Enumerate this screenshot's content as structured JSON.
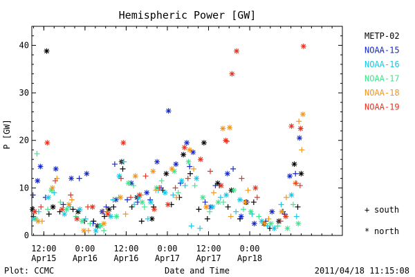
{
  "chart_data": {
    "type": "scatter",
    "title": "Hemispheric Power [GW]",
    "ylabel": "P [GW]",
    "xlabel": "Date and Time",
    "ylim": [
      0,
      44
    ],
    "xlim": [
      "2011-04-15 08:30",
      "2011-04-19 03:00"
    ],
    "y_ticks": [
      0,
      10,
      20,
      30,
      40
    ],
    "x_ticks": [
      {
        "t": "2011-04-15 12:00",
        "label1": "12:00",
        "label2": "Apr15"
      },
      {
        "t": "2011-04-16 00:00",
        "label1": "0:00",
        "label2": "Apr16"
      },
      {
        "t": "2011-04-16 12:00",
        "label1": "12:00",
        "label2": "Apr16"
      },
      {
        "t": "2011-04-17 00:00",
        "label1": "0:00",
        "label2": "Apr17"
      },
      {
        "t": "2011-04-17 12:00",
        "label1": "12:00",
        "label2": "Apr17"
      },
      {
        "t": "2011-04-18 00:00",
        "label1": "0:00",
        "label2": "Apr18"
      }
    ],
    "symbol_legend": [
      {
        "symbol": "+",
        "label": "south"
      },
      {
        "symbol": "*",
        "label": "north"
      }
    ],
    "series": [
      {
        "name": "METP-02",
        "color": "#000000",
        "north": [
          [
            "2011-04-15 08:40",
            5.5
          ],
          [
            "2011-04-15 12:50",
            38.8
          ],
          [
            "2011-04-15 14:40",
            6
          ],
          [
            "2011-04-15 22:00",
            5
          ],
          [
            "2011-04-16 03:40",
            2
          ],
          [
            "2011-04-16 07:00",
            5.5
          ],
          [
            "2011-04-16 10:40",
            15.5
          ],
          [
            "2011-04-16 15:10",
            8
          ],
          [
            "2011-04-16 19:30",
            3.5
          ],
          [
            "2011-04-16 23:40",
            13
          ],
          [
            "2011-04-17 04:40",
            17
          ],
          [
            "2011-04-17 10:40",
            19.5
          ],
          [
            "2011-04-17 14:40",
            11
          ],
          [
            "2011-04-17 18:40",
            9.5
          ],
          [
            "2011-04-17 23:00",
            7
          ],
          [
            "2011-04-18 04:10",
            2.5
          ],
          [
            "2011-04-18 08:30",
            3
          ],
          [
            "2011-04-18 13:00",
            15
          ],
          [
            "2011-04-18 15:00",
            13
          ]
        ],
        "south": [
          [
            "2011-04-15 09:00",
            4
          ],
          [
            "2011-04-15 13:30",
            4.5
          ],
          [
            "2011-04-15 16:40",
            5
          ],
          [
            "2011-04-15 20:30",
            5.5
          ],
          [
            "2011-04-15 23:50",
            3
          ],
          [
            "2011-04-16 02:30",
            3
          ],
          [
            "2011-04-16 05:40",
            4
          ],
          [
            "2011-04-16 08:20",
            6
          ],
          [
            "2011-04-16 11:00",
            14
          ],
          [
            "2011-04-16 13:40",
            6
          ],
          [
            "2011-04-16 16:30",
            3
          ],
          [
            "2011-04-16 20:00",
            6
          ],
          [
            "2011-04-16 22:40",
            9.5
          ],
          [
            "2011-04-17 01:10",
            6.5
          ],
          [
            "2011-04-17 03:30",
            8
          ],
          [
            "2011-04-17 06:40",
            13
          ],
          [
            "2011-04-17 09:10",
            5.5
          ],
          [
            "2011-04-17 11:40",
            3.5
          ],
          [
            "2011-04-17 15:10",
            10.5
          ],
          [
            "2011-04-17 17:40",
            6
          ],
          [
            "2011-04-17 21:10",
            3.5
          ],
          [
            "2011-04-18 01:10",
            7
          ],
          [
            "2011-04-18 05:50",
            1.5
          ],
          [
            "2011-04-18 09:40",
            5
          ],
          [
            "2011-04-18 14:00",
            6
          ]
        ]
      },
      {
        "name": "NOAA-15",
        "color": "#1428c8",
        "north": [
          [
            "2011-04-15 10:10",
            11.5
          ],
          [
            "2011-04-15 11:00",
            14.5
          ],
          [
            "2011-04-15 15:30",
            14
          ],
          [
            "2011-04-15 20:00",
            12
          ],
          [
            "2011-04-16 00:30",
            13
          ],
          [
            "2011-04-16 05:00",
            5
          ],
          [
            "2011-04-16 09:00",
            7.5
          ],
          [
            "2011-04-16 13:30",
            11
          ],
          [
            "2011-04-16 18:00",
            9
          ],
          [
            "2011-04-16 21:00",
            15.5
          ],
          [
            "2011-04-17 00:20",
            26.2
          ],
          [
            "2011-04-17 02:30",
            15
          ],
          [
            "2011-04-17 05:40",
            19.5
          ],
          [
            "2011-04-17 07:30",
            17.5
          ],
          [
            "2011-04-17 12:40",
            6
          ],
          [
            "2011-04-17 17:30",
            13
          ],
          [
            "2011-04-17 21:30",
            4
          ],
          [
            "2011-04-18 01:20",
            2.5
          ],
          [
            "2011-04-18 06:30",
            5
          ],
          [
            "2011-04-18 11:40",
            12.5
          ],
          [
            "2011-04-18 14:30",
            20.5
          ]
        ],
        "south": [
          [
            "2011-04-15 08:50",
            8.5
          ],
          [
            "2011-04-15 12:30",
            8
          ],
          [
            "2011-04-15 17:40",
            6.5
          ],
          [
            "2011-04-15 22:20",
            12
          ],
          [
            "2011-04-16 02:20",
            2.5
          ],
          [
            "2011-04-16 06:10",
            6
          ],
          [
            "2011-04-16 08:40",
            15
          ],
          [
            "2011-04-16 12:20",
            7.5
          ],
          [
            "2011-04-16 15:20",
            7
          ],
          [
            "2011-04-16 19:00",
            7.5
          ],
          [
            "2011-04-16 22:10",
            10
          ],
          [
            "2011-04-17 03:50",
            11
          ],
          [
            "2011-04-17 06:30",
            14.5
          ],
          [
            "2011-04-17 11:00",
            7
          ],
          [
            "2011-04-17 14:00",
            10.5
          ],
          [
            "2011-04-17 19:10",
            14
          ],
          [
            "2011-04-17 23:10",
            7
          ],
          [
            "2011-04-18 04:40",
            3
          ],
          [
            "2011-04-18 10:10",
            4.5
          ],
          [
            "2011-04-18 13:20",
            13
          ]
        ]
      },
      {
        "name": "NOAA-16",
        "color": "#16c8e6",
        "north": [
          [
            "2011-04-15 09:10",
            3.5
          ],
          [
            "2011-04-15 13:20",
            8
          ],
          [
            "2011-04-15 18:00",
            4.5
          ],
          [
            "2011-04-15 22:30",
            5.5
          ],
          [
            "2011-04-16 03:10",
            1
          ],
          [
            "2011-04-16 07:30",
            4
          ],
          [
            "2011-04-16 10:00",
            12.5
          ],
          [
            "2011-04-16 15:40",
            8
          ],
          [
            "2011-04-16 19:10",
            7
          ],
          [
            "2011-04-16 23:20",
            9
          ],
          [
            "2011-04-17 04:10",
            11.5
          ],
          [
            "2011-04-17 08:30",
            12
          ],
          [
            "2011-04-17 13:10",
            6
          ],
          [
            "2011-04-17 17:10",
            8.5
          ],
          [
            "2011-04-17 21:10",
            7.5
          ],
          [
            "2011-04-18 03:30",
            3
          ],
          [
            "2011-04-18 07:10",
            1.5
          ],
          [
            "2011-04-18 12:10",
            8.5
          ]
        ],
        "south": [
          [
            "2011-04-15 10:30",
            5
          ],
          [
            "2011-04-15 15:00",
            9
          ],
          [
            "2011-04-15 19:40",
            6
          ],
          [
            "2011-04-16 00:10",
            3.5
          ],
          [
            "2011-04-16 04:20",
            2
          ],
          [
            "2011-04-16 08:10",
            7.5
          ],
          [
            "2011-04-16 11:20",
            15.5
          ],
          [
            "2011-04-16 14:20",
            6.5
          ],
          [
            "2011-04-16 18:20",
            3.5
          ],
          [
            "2011-04-16 21:20",
            9.5
          ],
          [
            "2011-04-17 01:40",
            8.5
          ],
          [
            "2011-04-17 05:10",
            10.5
          ],
          [
            "2011-04-17 07:00",
            2
          ],
          [
            "2011-04-17 09:30",
            1.5
          ],
          [
            "2011-04-17 15:30",
            8
          ],
          [
            "2011-04-17 20:00",
            5
          ],
          [
            "2011-04-18 00:40",
            4.5
          ],
          [
            "2011-04-18 05:10",
            2
          ],
          [
            "2011-04-18 09:10",
            6.5
          ],
          [
            "2011-04-18 13:40",
            4
          ]
        ]
      },
      {
        "name": "NOAA-17",
        "color": "#3ce68c",
        "north": [
          [
            "2011-04-15 09:40",
            3.5
          ],
          [
            "2011-04-15 14:10",
            9.5
          ],
          [
            "2011-04-15 18:40",
            5.5
          ],
          [
            "2011-04-15 23:10",
            3
          ],
          [
            "2011-04-16 04:30",
            2
          ],
          [
            "2011-04-16 09:10",
            4
          ],
          [
            "2011-04-16 12:40",
            11
          ],
          [
            "2011-04-16 16:40",
            7
          ],
          [
            "2011-04-16 20:50",
            10
          ],
          [
            "2011-04-17 02:00",
            13.5
          ],
          [
            "2011-04-17 06:10",
            15.5
          ],
          [
            "2011-04-17 10:20",
            8
          ],
          [
            "2011-04-17 14:50",
            7
          ],
          [
            "2011-04-17 19:20",
            9.5
          ],
          [
            "2011-04-18 00:20",
            5
          ],
          [
            "2011-04-18 06:10",
            2.5
          ],
          [
            "2011-04-18 11:00",
            1.5
          ],
          [
            "2011-04-18 14:10",
            2.5
          ]
        ],
        "south": [
          [
            "2011-04-15 10:00",
            17.2
          ],
          [
            "2011-04-15 13:10",
            5.5
          ],
          [
            "2011-04-15 16:50",
            7
          ],
          [
            "2011-04-15 21:20",
            4
          ],
          [
            "2011-04-16 01:30",
            2.5
          ],
          [
            "2011-04-16 05:30",
            1
          ],
          [
            "2011-04-16 09:50",
            8
          ],
          [
            "2011-04-16 14:10",
            10.5
          ],
          [
            "2011-04-16 17:20",
            6
          ],
          [
            "2011-04-16 22:20",
            11.5
          ],
          [
            "2011-04-17 03:10",
            9
          ],
          [
            "2011-04-17 08:00",
            10.5
          ],
          [
            "2011-04-17 12:20",
            5
          ],
          [
            "2011-04-17 16:20",
            7
          ],
          [
            "2011-04-17 22:10",
            5.5
          ],
          [
            "2011-04-18 02:40",
            4
          ],
          [
            "2011-04-18 08:10",
            2
          ],
          [
            "2011-04-18 12:40",
            6.5
          ]
        ]
      },
      {
        "name": "NOAA-18",
        "color": "#f0961e",
        "north": [
          [
            "2011-04-15 10:20",
            3
          ],
          [
            "2011-04-15 14:30",
            10
          ],
          [
            "2011-04-15 19:20",
            6.5
          ],
          [
            "2011-04-15 23:40",
            1
          ],
          [
            "2011-04-16 05:30",
            2.5
          ],
          [
            "2011-04-16 10:20",
            8
          ],
          [
            "2011-04-16 14:40",
            12.5
          ],
          [
            "2011-04-16 19:50",
            13.5
          ],
          [
            "2011-04-17 01:20",
            14
          ],
          [
            "2011-04-17 06:30",
            18
          ],
          [
            "2011-04-17 11:20",
            6
          ],
          [
            "2011-04-17 16:10",
            22.5
          ],
          [
            "2011-04-17 18:10",
            22.7
          ],
          [
            "2011-04-17 22:40",
            7
          ],
          [
            "2011-04-18 04:20",
            2.5
          ],
          [
            "2011-04-18 09:20",
            5
          ],
          [
            "2011-04-18 13:20",
            11
          ],
          [
            "2011-04-18 15:30",
            25.5
          ]
        ],
        "south": [
          [
            "2011-04-15 11:30",
            3
          ],
          [
            "2011-04-15 15:50",
            12
          ],
          [
            "2011-04-15 20:10",
            7.5
          ],
          [
            "2011-04-16 01:00",
            1
          ],
          [
            "2011-04-16 06:20",
            5
          ],
          [
            "2011-04-16 11:50",
            4.5
          ],
          [
            "2011-04-16 16:20",
            8.5
          ],
          [
            "2011-04-16 20:40",
            9.5
          ],
          [
            "2011-04-17 02:40",
            8
          ],
          [
            "2011-04-17 07:40",
            14
          ],
          [
            "2011-04-17 13:30",
            9
          ],
          [
            "2011-04-17 18:30",
            4
          ],
          [
            "2011-04-17 23:30",
            9.5
          ],
          [
            "2011-04-18 05:30",
            3.5
          ],
          [
            "2011-04-18 10:40",
            8
          ],
          [
            "2011-04-18 14:20",
            24
          ],
          [
            "2011-04-18 15:10",
            18
          ]
        ]
      },
      {
        "name": "NOAA-19",
        "color": "#e6321e",
        "north": [
          [
            "2011-04-15 09:20",
            5
          ],
          [
            "2011-04-15 13:00",
            19.5
          ],
          [
            "2011-04-15 17:20",
            5.5
          ],
          [
            "2011-04-15 21:40",
            3.5
          ],
          [
            "2011-04-16 02:10",
            6
          ],
          [
            "2011-04-16 06:40",
            4.5
          ],
          [
            "2011-04-16 11:10",
            19.5
          ],
          [
            "2011-04-16 15:50",
            8.5
          ],
          [
            "2011-04-16 20:10",
            5.5
          ],
          [
            "2011-04-17 00:10",
            6.5
          ],
          [
            "2011-04-17 05:00",
            18.5
          ],
          [
            "2011-04-17 09:40",
            16
          ],
          [
            "2011-04-17 15:40",
            10.5
          ],
          [
            "2011-04-17 17:00",
            20
          ],
          [
            "2011-04-17 18:50",
            34
          ],
          [
            "2011-04-17 20:10",
            38.8
          ],
          [
            "2011-04-18 01:40",
            10
          ],
          [
            "2011-04-18 10:30",
            4
          ],
          [
            "2011-04-18 12:10",
            23
          ],
          [
            "2011-04-18 14:50",
            22.5
          ],
          [
            "2011-04-18 15:40",
            39.8
          ]
        ],
        "south": [
          [
            "2011-04-15 11:10",
            6
          ],
          [
            "2011-04-15 15:20",
            11.5
          ],
          [
            "2011-04-15 19:50",
            8.5
          ],
          [
            "2011-04-16 00:50",
            6
          ],
          [
            "2011-04-16 05:20",
            5
          ],
          [
            "2011-04-16 10:30",
            12
          ],
          [
            "2011-04-16 13:20",
            8
          ],
          [
            "2011-04-16 17:40",
            12.5
          ],
          [
            "2011-04-16 21:40",
            10
          ],
          [
            "2011-04-17 02:20",
            10
          ],
          [
            "2011-04-17 06:00",
            12
          ],
          [
            "2011-04-17 12:30",
            13.5
          ],
          [
            "2011-04-17 17:20",
            19.8
          ],
          [
            "2011-04-17 21:40",
            12
          ],
          [
            "2011-04-18 02:10",
            8
          ],
          [
            "2011-04-18 09:00",
            3
          ],
          [
            "2011-04-18 13:30",
            11
          ],
          [
            "2011-04-18 14:40",
            10.5
          ]
        ]
      }
    ]
  },
  "footer": {
    "plot_credit": "Plot: CCMC",
    "timestamp": "2011/04/18 11:15:08"
  }
}
